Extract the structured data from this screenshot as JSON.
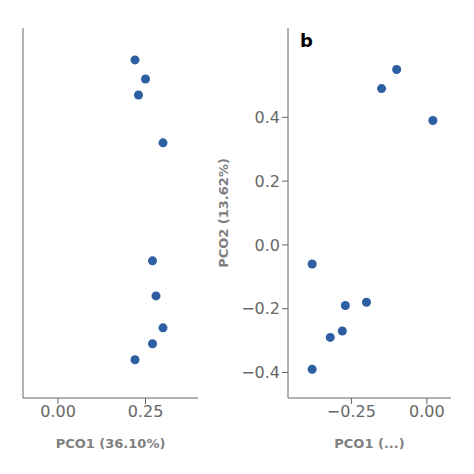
{
  "chart_data": [
    {
      "type": "scatter",
      "x": [
        0.22,
        0.25,
        0.23,
        0.3,
        0.27,
        0.28,
        0.3,
        0.27,
        0.22
      ],
      "values": [
        0.58,
        0.52,
        0.47,
        0.32,
        -0.05,
        -0.16,
        -0.26,
        -0.31,
        -0.36
      ],
      "xlabel": "PCO1 (36.10%)",
      "xlim": [
        -0.1,
        0.4
      ],
      "xticks": [
        {
          "value": 0.0,
          "label": "0.00"
        },
        0.25
      ],
      "ylim": [
        -0.48,
        0.68
      ],
      "tick_labels": "x",
      "color": "#2e5fa3"
    },
    {
      "type": "scatter",
      "x": [
        -0.1,
        -0.15,
        0.02,
        -0.38,
        -0.2,
        -0.27,
        -0.28,
        -0.32,
        -0.38
      ],
      "values": [
        0.55,
        0.49,
        0.39,
        -0.06,
        -0.18,
        -0.19,
        -0.27,
        -0.29,
        -0.39
      ],
      "xlabel": "PCO1 (...)",
      "ylabel": "PCO2 (13.62%)",
      "xlim": [
        -0.46,
        0.08
      ],
      "xticks": [
        {
          "value": -0.25,
          "label": "−0.25"
        },
        {
          "value": 0.0,
          "label": "0.00"
        }
      ],
      "ylim": [
        -0.48,
        0.68
      ],
      "yticks": [
        0.4,
        0.2,
        {
          "value": 0.0,
          "label": "0.0"
        },
        {
          "value": -0.2,
          "label": "−0.2"
        },
        {
          "value": -0.4,
          "label": "−0.4"
        }
      ],
      "annotations": [
        "b"
      ],
      "color": "#2e5fa3"
    }
  ]
}
